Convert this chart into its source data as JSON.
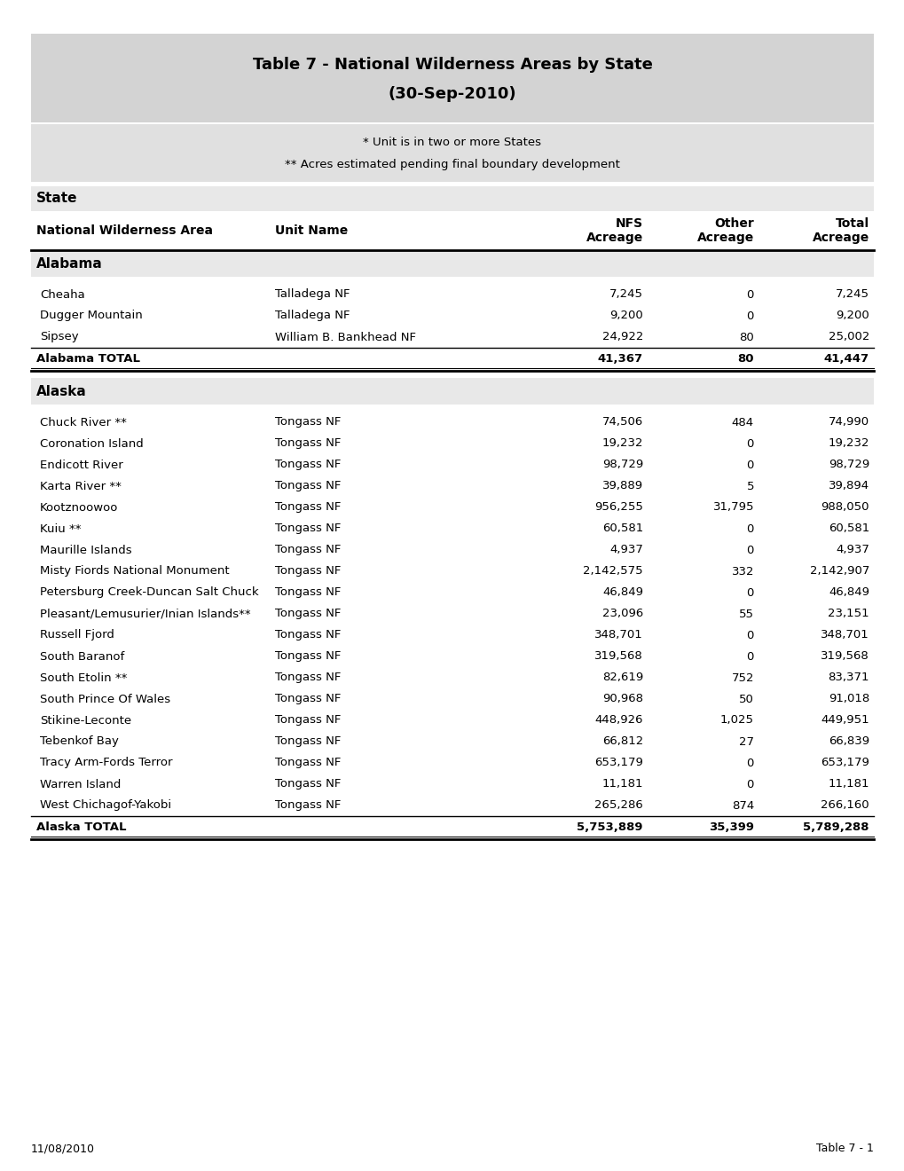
{
  "title_line1": "Table 7 - National Wilderness Areas by State",
  "title_line2": "(30-Sep-2010)",
  "subtitle_line1": "* Unit is in two or more States",
  "subtitle_line2": "** Acres estimated pending final boundary development",
  "alabama_rows": [
    [
      "Cheaha",
      "Talladega NF",
      "7,245",
      "0",
      "7,245"
    ],
    [
      "Dugger Mountain",
      "Talladega NF",
      "9,200",
      "0",
      "9,200"
    ],
    [
      "Sipsey",
      "William B. Bankhead NF",
      "24,922",
      "80",
      "25,002"
    ]
  ],
  "alabama_total": [
    "Alabama TOTAL",
    "",
    "41,367",
    "80",
    "41,447"
  ],
  "alaska_rows": [
    [
      "Chuck River **",
      "Tongass NF",
      "74,506",
      "484",
      "74,990"
    ],
    [
      "Coronation Island",
      "Tongass NF",
      "19,232",
      "0",
      "19,232"
    ],
    [
      "Endicott River",
      "Tongass NF",
      "98,729",
      "0",
      "98,729"
    ],
    [
      "Karta River **",
      "Tongass NF",
      "39,889",
      "5",
      "39,894"
    ],
    [
      "Kootznoowoo",
      "Tongass NF",
      "956,255",
      "31,795",
      "988,050"
    ],
    [
      "Kuiu **",
      "Tongass NF",
      "60,581",
      "0",
      "60,581"
    ],
    [
      "Maurille Islands",
      "Tongass NF",
      "4,937",
      "0",
      "4,937"
    ],
    [
      "Misty Fiords National Monument",
      "Tongass NF",
      "2,142,575",
      "332",
      "2,142,907"
    ],
    [
      "Petersburg Creek-Duncan Salt Chuck",
      "Tongass NF",
      "46,849",
      "0",
      "46,849"
    ],
    [
      "Pleasant/Lemusurier/Inian Islands**",
      "Tongass NF",
      "23,096",
      "55",
      "23,151"
    ],
    [
      "Russell Fjord",
      "Tongass NF",
      "348,701",
      "0",
      "348,701"
    ],
    [
      "South Baranof",
      "Tongass NF",
      "319,568",
      "0",
      "319,568"
    ],
    [
      "South Etolin **",
      "Tongass NF",
      "82,619",
      "752",
      "83,371"
    ],
    [
      "South Prince Of Wales",
      "Tongass NF",
      "90,968",
      "50",
      "91,018"
    ],
    [
      "Stikine-Leconte",
      "Tongass NF",
      "448,926",
      "1,025",
      "449,951"
    ],
    [
      "Tebenkof Bay",
      "Tongass NF",
      "66,812",
      "27",
      "66,839"
    ],
    [
      "Tracy Arm-Fords Terror",
      "Tongass NF",
      "653,179",
      "0",
      "653,179"
    ],
    [
      "Warren Island",
      "Tongass NF",
      "11,181",
      "0",
      "11,181"
    ],
    [
      "West Chichagof-Yakobi",
      "Tongass NF",
      "265,286",
      "874",
      "266,160"
    ]
  ],
  "alaska_total": [
    "Alaska TOTAL",
    "",
    "5,753,889",
    "35,399",
    "5,789,288"
  ],
  "footer_left": "11/08/2010",
  "footer_right": "Table 7 - 1",
  "bg_color": "#ffffff",
  "title_bg": "#d3d3d3",
  "subtitle_bg": "#e0e0e0",
  "state_hdr_bg": "#e8e8e8",
  "title_fontsize": 13,
  "body_fontsize": 9.5,
  "col_header_fontsize": 10,
  "state_fontsize": 11
}
